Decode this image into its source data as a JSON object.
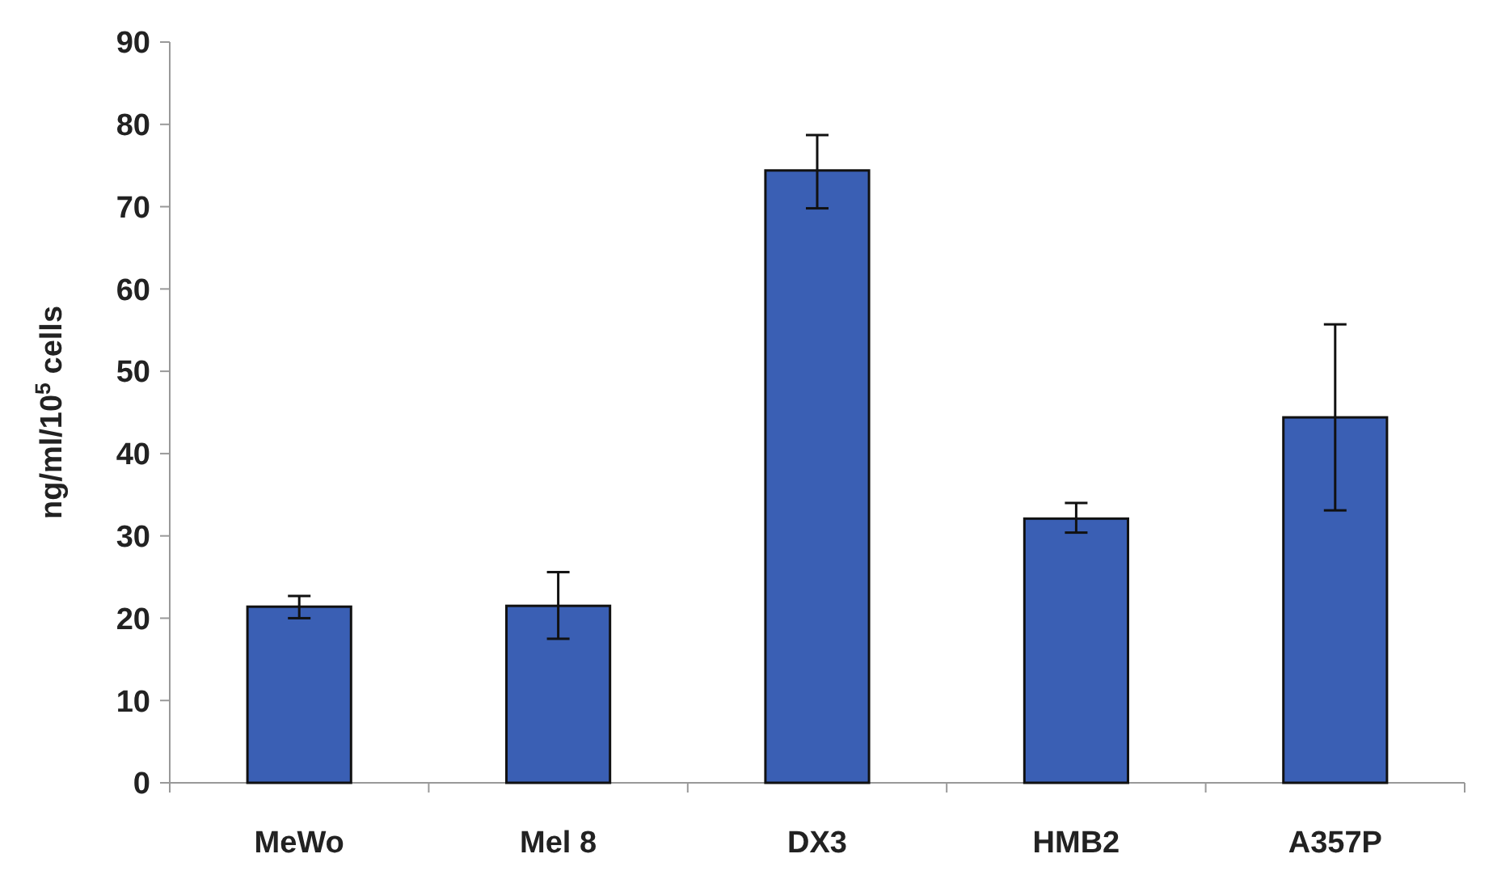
{
  "chart_data": {
    "type": "bar",
    "ylabel": "ng/ml/10$^{5}$ cells",
    "categories": [
      "MeWo",
      "Mel 8",
      "DX3",
      "HMB2",
      "A357P"
    ],
    "values": [
      21.4,
      21.5,
      74.4,
      32.1,
      44.4
    ],
    "errors": [
      [
        20.0,
        22.7
      ],
      [
        17.5,
        25.6
      ],
      [
        69.8,
        78.7
      ],
      [
        30.4,
        34.0
      ],
      [
        33.1,
        55.7
      ]
    ],
    "color": "#3a5fb4",
    "ylim": [
      0,
      90
    ],
    "yticks": [
      0,
      10,
      20,
      30,
      40,
      50,
      60,
      70,
      80,
      90
    ],
    "grid": false
  }
}
